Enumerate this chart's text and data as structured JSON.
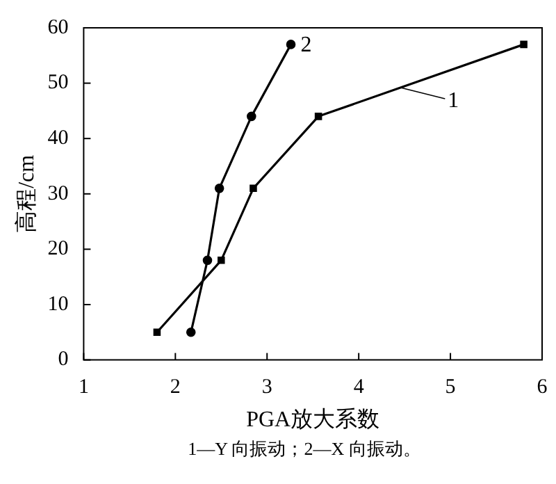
{
  "chart_data": {
    "type": "line",
    "xlabel": "PGA放大系数",
    "ylabel": "高程/cm",
    "series": [
      {
        "name": "1",
        "color": "#000000",
        "marker": "square",
        "x": [
          1.8,
          2.5,
          2.85,
          3.56,
          5.8
        ],
        "values": [
          5,
          18,
          31,
          44,
          57
        ]
      },
      {
        "name": "2",
        "color": "#000000",
        "marker": "circle",
        "x": [
          2.17,
          2.35,
          2.48,
          2.83,
          3.26
        ],
        "values": [
          5,
          18,
          31,
          44,
          57
        ]
      }
    ],
    "xlim": [
      1,
      6
    ],
    "xticks": [
      1,
      2,
      3,
      4,
      5,
      6
    ],
    "ylim": [
      0,
      60
    ],
    "yticks": [
      0,
      10,
      20,
      30,
      40,
      50,
      60
    ],
    "annotations": [
      "1—Y 向振动；2—X 向振动。"
    ]
  }
}
